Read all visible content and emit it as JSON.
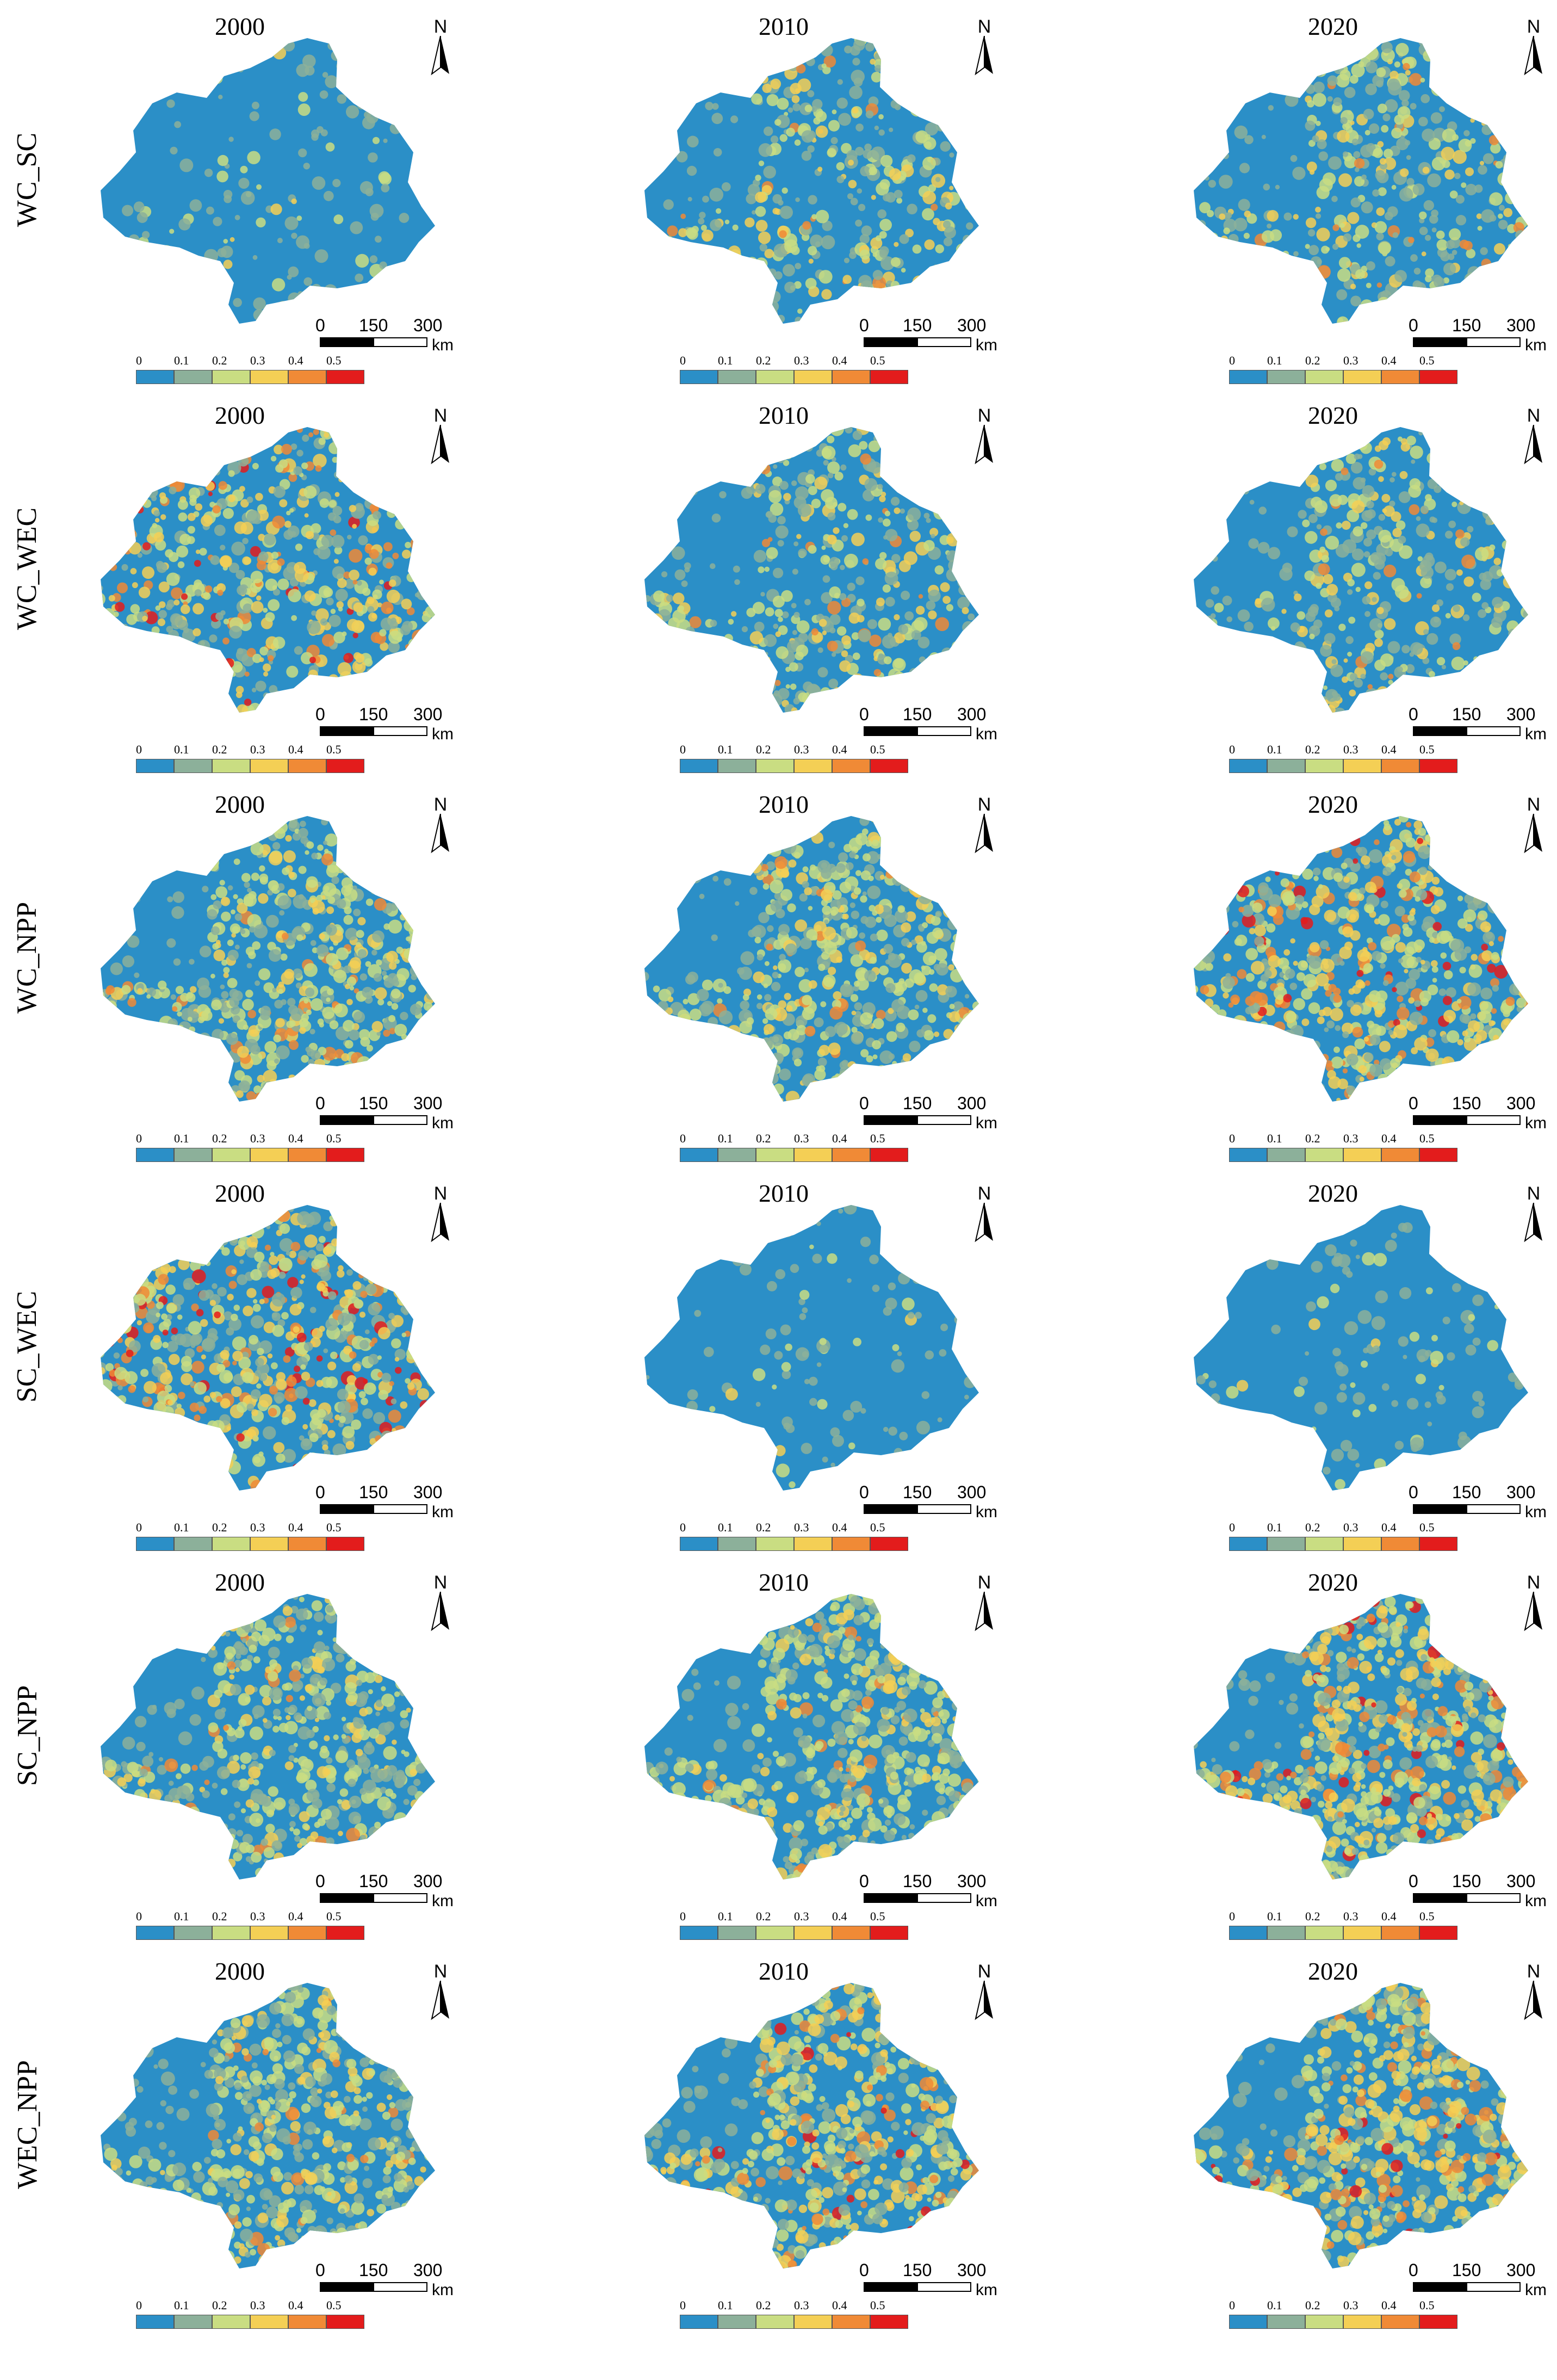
{
  "figure": {
    "rows": [
      {
        "label": "WC_SC"
      },
      {
        "label": "WC_WEC"
      },
      {
        "label": "WC_NPP"
      },
      {
        "label": "SC_WEC"
      },
      {
        "label": "SC_NPP"
      },
      {
        "label": "WEC_NPP"
      }
    ],
    "years": [
      "2000",
      "2010",
      "2020"
    ],
    "north_label": "N",
    "scale_bar": {
      "ticks": [
        "0",
        "150",
        "300"
      ],
      "unit": "km"
    },
    "legend": {
      "labels": [
        "0",
        "0.1",
        "0.2",
        "0.3",
        "0.4",
        "0.5"
      ],
      "colors": [
        "#2b8fc7",
        "#8cb09a",
        "#c9dd82",
        "#f4cf55",
        "#f08a36",
        "#e31c1c"
      ]
    },
    "map_tone": [
      {
        "row": "WC_SC",
        "levels": [
          "low",
          "low-medium",
          "low-medium"
        ]
      },
      {
        "row": "WC_WEC",
        "levels": [
          "medium-high",
          "low-medium",
          "low-medium"
        ]
      },
      {
        "row": "WC_NPP",
        "levels": [
          "medium",
          "medium",
          "medium-high"
        ]
      },
      {
        "row": "SC_WEC",
        "levels": [
          "medium-high",
          "low",
          "low"
        ]
      },
      {
        "row": "SC_NPP",
        "levels": [
          "medium",
          "medium",
          "high"
        ]
      },
      {
        "row": "WEC_NPP",
        "levels": [
          "medium",
          "high",
          "high"
        ]
      }
    ]
  }
}
